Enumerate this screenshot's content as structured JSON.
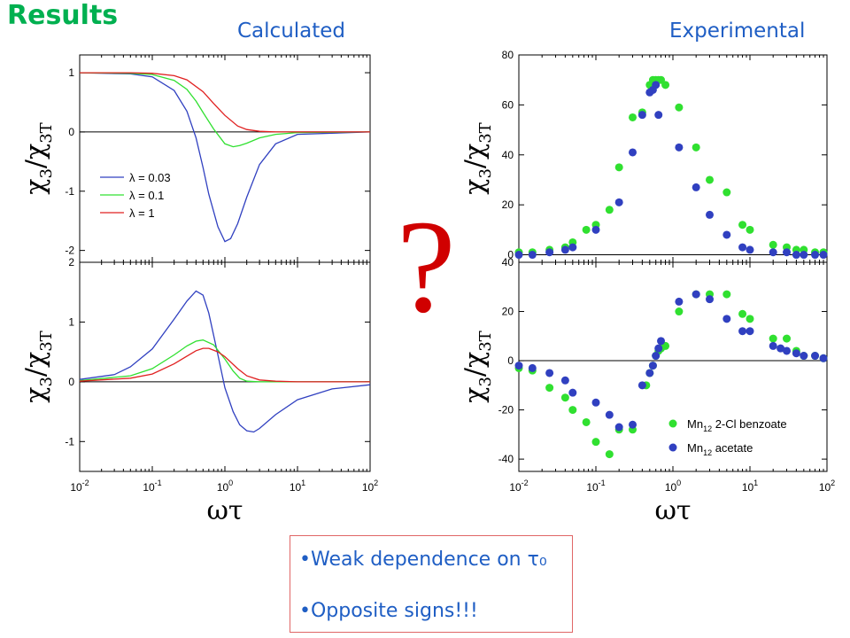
{
  "title": "Results",
  "labels": {
    "calculated": "Calculated",
    "experimental": "Experimental"
  },
  "question_mark": "?",
  "notes": [
    "•Weak dependence on τ₀",
    "•Opposite signs!!!"
  ],
  "colors": {
    "title": "#00b050",
    "label": "#1f5ec4",
    "question": "#d00000",
    "blue": "#3040c0",
    "green": "#30e030",
    "red": "#e02020"
  },
  "chart_data": [
    {
      "type": "line",
      "panel": "calculated-top",
      "xscale": "log",
      "xlim": [
        0.01,
        100
      ],
      "ylim": [
        -2.2,
        1.3
      ],
      "yticks": [
        1,
        0,
        -1,
        -2
      ],
      "ylabel": "χ3/χ3T",
      "legend": "left",
      "series": [
        {
          "name": "λ = 0.03",
          "color": "#3040c0",
          "x": [
            0.01,
            0.05,
            0.1,
            0.2,
            0.3,
            0.4,
            0.5,
            0.6,
            0.8,
            1.0,
            1.2,
            1.5,
            2.0,
            3.0,
            5.0,
            10.0,
            100.0
          ],
          "values": [
            1.0,
            0.98,
            0.93,
            0.7,
            0.35,
            -0.1,
            -0.6,
            -1.05,
            -1.6,
            -1.85,
            -1.8,
            -1.55,
            -1.1,
            -0.55,
            -0.2,
            -0.04,
            0.0
          ]
        },
        {
          "name": "λ = 0.1",
          "color": "#30e030",
          "x": [
            0.01,
            0.05,
            0.1,
            0.2,
            0.3,
            0.4,
            0.5,
            0.7,
            1.0,
            1.3,
            1.6,
            2.0,
            3.0,
            5.0,
            10.0,
            100.0
          ],
          "values": [
            1.0,
            0.99,
            0.97,
            0.87,
            0.72,
            0.52,
            0.33,
            0.05,
            -0.2,
            -0.25,
            -0.23,
            -0.19,
            -0.1,
            -0.04,
            -0.01,
            0.0
          ]
        },
        {
          "name": "λ = 1",
          "color": "#e02020",
          "x": [
            0.01,
            0.05,
            0.1,
            0.2,
            0.3,
            0.5,
            0.7,
            1.0,
            1.5,
            2.0,
            3.0,
            5.0,
            100.0
          ],
          "values": [
            1.0,
            1.0,
            0.99,
            0.95,
            0.88,
            0.68,
            0.48,
            0.28,
            0.1,
            0.04,
            0.01,
            0.0,
            0.0
          ]
        }
      ]
    },
    {
      "type": "line",
      "panel": "calculated-bottom",
      "xscale": "log",
      "xlim": [
        0.01,
        100
      ],
      "ylim": [
        -1.5,
        2
      ],
      "yticks": [
        2,
        1,
        0,
        -1
      ],
      "xticks": [
        "10-2",
        "10-1",
        "100",
        "101",
        "102"
      ],
      "ylabel": "χ3/χ3T",
      "xlabel": "ωτ",
      "series": [
        {
          "name": "λ = 0.03",
          "color": "#3040c0",
          "x": [
            0.01,
            0.03,
            0.05,
            0.1,
            0.2,
            0.3,
            0.4,
            0.5,
            0.6,
            0.8,
            1.0,
            1.3,
            1.6,
            2.0,
            2.5,
            3.0,
            5.0,
            10.0,
            30.0,
            100.0
          ],
          "values": [
            0.04,
            0.12,
            0.25,
            0.55,
            1.05,
            1.35,
            1.52,
            1.45,
            1.15,
            0.45,
            -0.1,
            -0.5,
            -0.72,
            -0.82,
            -0.84,
            -0.78,
            -0.55,
            -0.3,
            -0.12,
            -0.05
          ]
        },
        {
          "name": "λ = 0.1",
          "color": "#30e030",
          "x": [
            0.01,
            0.05,
            0.1,
            0.2,
            0.3,
            0.4,
            0.5,
            0.7,
            1.0,
            1.3,
            1.6,
            2.0,
            3.0,
            5.0,
            100.0
          ],
          "values": [
            0.02,
            0.1,
            0.22,
            0.45,
            0.6,
            0.68,
            0.7,
            0.62,
            0.38,
            0.18,
            0.06,
            0.01,
            0.0,
            0.0,
            0.0
          ]
        },
        {
          "name": "λ = 1",
          "color": "#e02020",
          "x": [
            0.01,
            0.05,
            0.1,
            0.2,
            0.3,
            0.4,
            0.5,
            0.6,
            0.8,
            1.0,
            1.5,
            2.0,
            3.0,
            5.0,
            10.0,
            100.0
          ],
          "values": [
            0.01,
            0.06,
            0.13,
            0.3,
            0.43,
            0.52,
            0.56,
            0.56,
            0.5,
            0.42,
            0.22,
            0.1,
            0.03,
            0.01,
            0.0,
            0.0
          ]
        }
      ]
    },
    {
      "type": "scatter",
      "panel": "experimental-top",
      "xscale": "log",
      "xlim": [
        0.01,
        100
      ],
      "ylim": [
        -3,
        80
      ],
      "yticks": [
        80,
        60,
        40,
        20,
        0
      ],
      "ylabel": "χ3/χ3T",
      "series": [
        {
          "name": "Mn12 2-Cl benzoate",
          "color": "#30e030",
          "x": [
            0.01,
            0.015,
            0.025,
            0.04,
            0.05,
            0.075,
            0.1,
            0.15,
            0.2,
            0.3,
            0.4,
            0.5,
            0.55,
            0.6,
            0.65,
            0.7,
            0.8,
            1.2,
            2.0,
            3.0,
            5.0,
            8.0,
            10.0,
            20.0,
            30.0,
            40.0,
            50.0,
            70.0,
            90.0
          ],
          "values": [
            1,
            1,
            2,
            3,
            5,
            10,
            12,
            18,
            35,
            55,
            57,
            68,
            70,
            70,
            70,
            70,
            68,
            59,
            43,
            30,
            25,
            12,
            10,
            4,
            3,
            2,
            2,
            1,
            1
          ]
        },
        {
          "name": "Mn12 acetate",
          "color": "#3040c0",
          "x": [
            0.01,
            0.015,
            0.025,
            0.04,
            0.05,
            0.1,
            0.2,
            0.3,
            0.4,
            0.5,
            0.55,
            0.6,
            0.65,
            1.2,
            2.0,
            3.0,
            5.0,
            8.0,
            10.0,
            20.0,
            30.0,
            40.0,
            50.0,
            70.0,
            90.0
          ],
          "values": [
            0,
            0,
            1,
            2,
            3,
            10,
            21,
            41,
            56,
            65,
            66,
            68,
            56,
            43,
            27,
            16,
            8,
            3,
            2,
            1,
            1,
            0,
            0,
            0,
            0
          ]
        }
      ]
    },
    {
      "type": "scatter",
      "panel": "experimental-bottom",
      "xscale": "log",
      "xlim": [
        0.01,
        100
      ],
      "ylim": [
        -45,
        40
      ],
      "yticks": [
        40,
        20,
        0,
        -20,
        -40
      ],
      "xticks": [
        "10-2",
        "10-1",
        "100",
        "101",
        "102"
      ],
      "ylabel": "χ3/χ3T",
      "xlabel": "ωτ",
      "legend": "bottom-right",
      "series": [
        {
          "name": "Mn12 2-Cl benzoate",
          "color": "#30e030",
          "x": [
            0.01,
            0.015,
            0.025,
            0.04,
            0.05,
            0.075,
            0.1,
            0.15,
            0.2,
            0.3,
            0.45,
            0.5,
            0.55,
            0.6,
            0.65,
            0.7,
            0.8,
            1.2,
            2.0,
            3.0,
            5.0,
            8.0,
            10.0,
            20.0,
            30.0,
            40.0,
            50.0,
            70.0,
            90.0
          ],
          "values": [
            -3,
            -4,
            -11,
            -15,
            -20,
            -25,
            -33,
            -38,
            -28,
            -28,
            -10,
            -5,
            -2,
            2,
            4,
            5,
            6,
            20,
            27,
            27,
            27,
            19,
            17,
            9,
            9,
            4,
            2,
            2,
            1
          ]
        },
        {
          "name": "Mn12 acetate",
          "color": "#3040c0",
          "x": [
            0.01,
            0.015,
            0.025,
            0.04,
            0.05,
            0.1,
            0.15,
            0.2,
            0.3,
            0.4,
            0.5,
            0.55,
            0.6,
            0.65,
            0.7,
            1.2,
            2.0,
            3.0,
            5.0,
            8.0,
            10.0,
            20.0,
            25.0,
            30.0,
            40.0,
            50.0,
            70.0,
            90.0
          ],
          "values": [
            -2,
            -3,
            -5,
            -8,
            -13,
            -17,
            -22,
            -27,
            -26,
            -10,
            -5,
            -2,
            2,
            5,
            8,
            24,
            27,
            25,
            17,
            12,
            12,
            6,
            5,
            4,
            3,
            2,
            2,
            1
          ]
        }
      ]
    }
  ]
}
